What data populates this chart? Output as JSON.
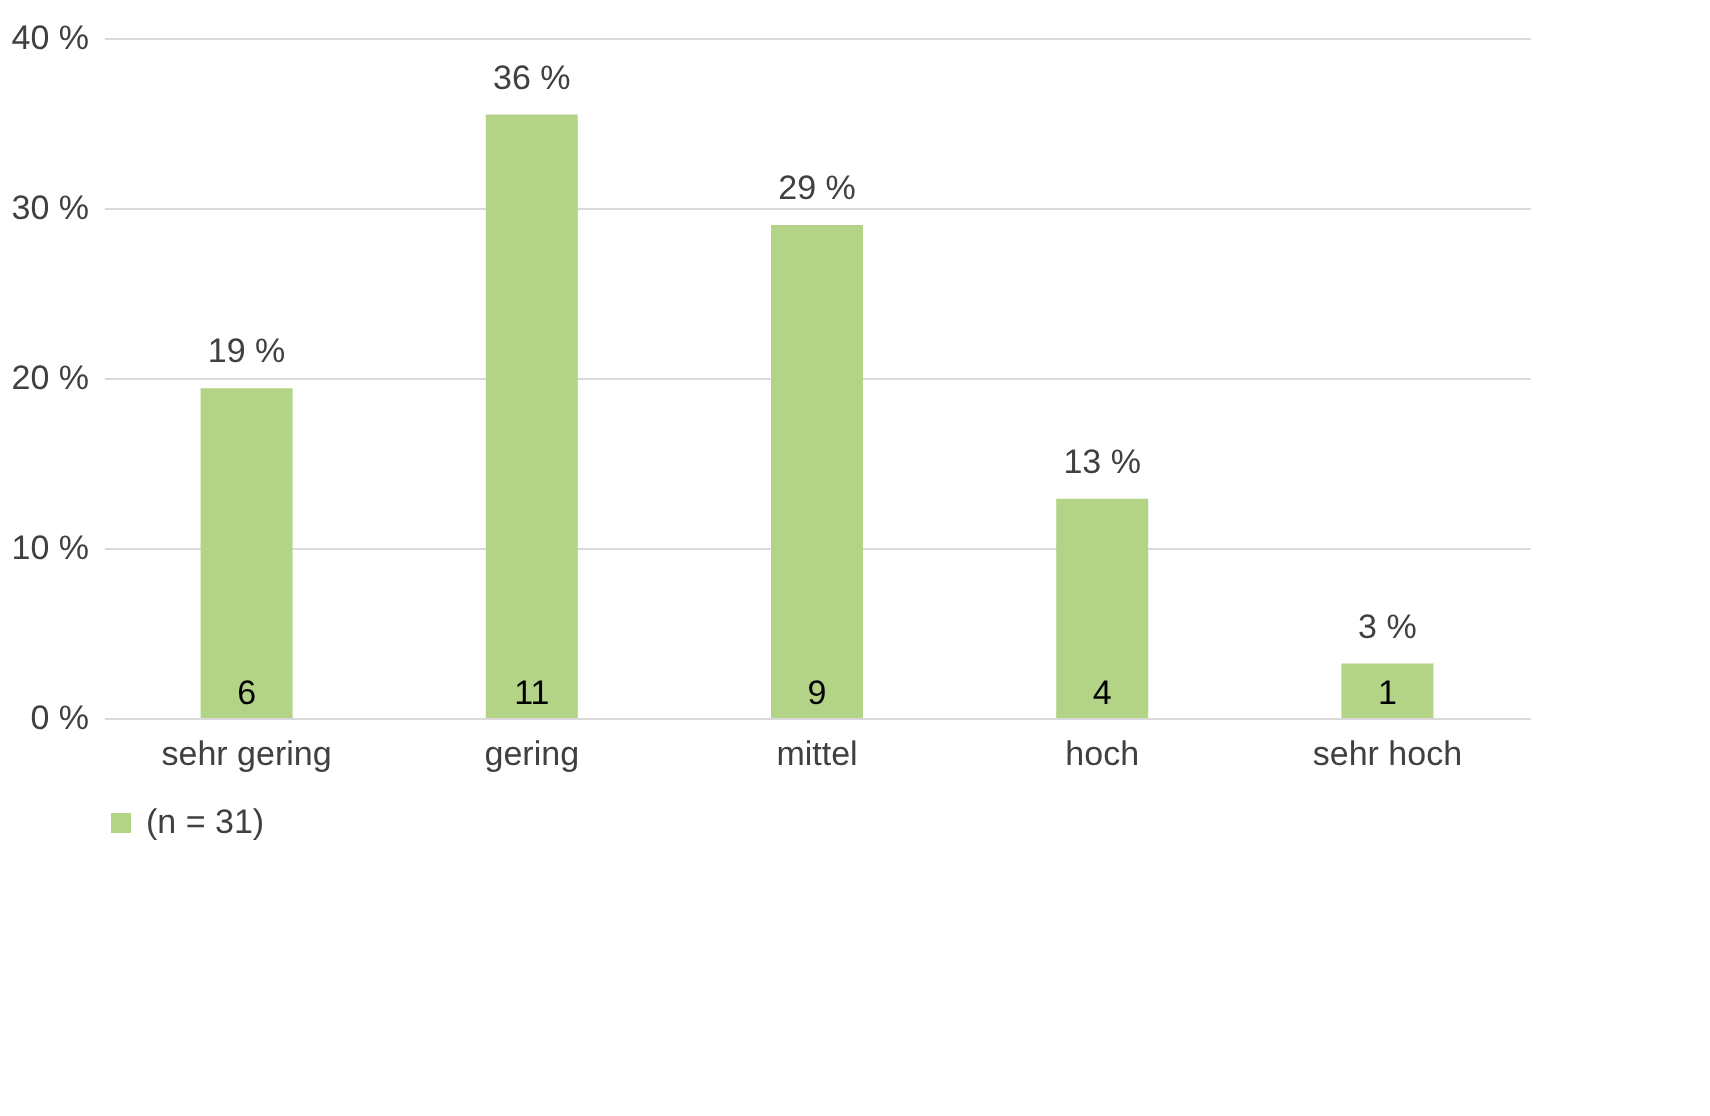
{
  "chart_data": {
    "type": "bar",
    "categories": [
      "sehr gering",
      "gering",
      "mittel",
      "hoch",
      "sehr hoch"
    ],
    "series": [
      {
        "name": "(n = 31)",
        "color": "#b3d386",
        "values": [
          19.4,
          35.5,
          29.0,
          12.9,
          3.2
        ],
        "value_labels": [
          "19 %",
          "36 %",
          "29 %",
          "13 %",
          "3 %"
        ]
      }
    ],
    "ylim": [
      0,
      40
    ],
    "yticks": [
      {
        "value": 0,
        "label": "0 %"
      },
      {
        "value": 10,
        "label": "10 %"
      },
      {
        "value": 20,
        "label": "20 %"
      },
      {
        "value": 30,
        "label": "30 %"
      },
      {
        "value": 40,
        "label": "40 %"
      }
    ],
    "grid": "y",
    "legend": "bottom",
    "annotations": [
      {
        "text": "6",
        "x": "sehr gering",
        "y": 0
      },
      {
        "text": "11",
        "x": "gering",
        "y": 0
      },
      {
        "text": "9",
        "x": "mittel",
        "y": 0
      },
      {
        "text": "4",
        "x": "hoch",
        "y": 0
      },
      {
        "text": "1",
        "x": "sehr hoch",
        "y": 0
      }
    ]
  }
}
